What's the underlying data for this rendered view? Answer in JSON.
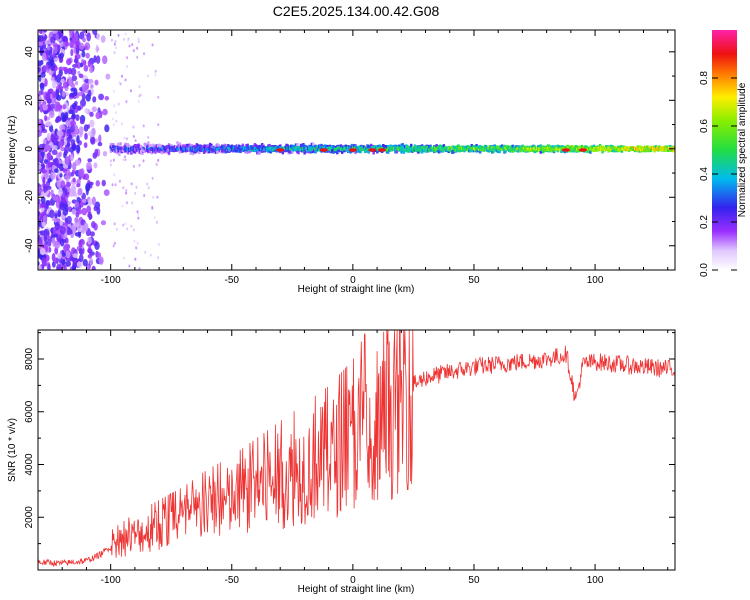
{
  "title": "C2E5.2025.134.00.42.G08",
  "chart_data": [
    {
      "type": "heatmap",
      "xlabel": "Height of straight line (km)",
      "ylabel": "Frequency (Hz)",
      "xlim": [
        -130,
        133
      ],
      "ylim": [
        -50,
        49
      ],
      "xticks": [
        -100,
        -50,
        0,
        50,
        100
      ],
      "xtick_labels": [
        "-100",
        "-50",
        "0",
        "50",
        "100"
      ],
      "yticks": [
        -40,
        -20,
        0,
        20,
        40
      ],
      "ytick_labels": [
        "-40",
        "-20",
        "0",
        "20",
        "40"
      ],
      "colorbar": {
        "label": "Normalized spectral amplitude",
        "range": [
          0,
          1
        ],
        "ticks": [
          0,
          0.2,
          0.4,
          0.6,
          0.8
        ],
        "tick_labels": [
          "0.0",
          "0.2",
          "0.4",
          "0.6",
          "0.8"
        ],
        "colormap": "white-violet-blue-cyan-green-yellow-red-magenta"
      },
      "description_points": [
        {
          "x_range": [
            -130,
            -100
          ],
          "note": "broadband noise across all frequencies, amplitude ~0.1-0.2"
        },
        {
          "x_range": [
            -100,
            133
          ],
          "center_freq_hz": 0,
          "note": "narrow tone near 0 Hz, amplitude rising from ~0.3 to ~1.0"
        }
      ]
    },
    {
      "type": "line",
      "xlabel": "Height of straight line (km)",
      "ylabel": "SNR (10 * v/v)",
      "xlim": [
        -130,
        133
      ],
      "ylim": [
        0,
        9100
      ],
      "xticks": [
        -100,
        -50,
        0,
        50,
        100
      ],
      "xtick_labels": [
        "-100",
        "-50",
        "0",
        "50",
        "100"
      ],
      "yticks": [
        2000,
        4000,
        6000,
        8000
      ],
      "ytick_labels": [
        "2000",
        "4000",
        "6000",
        "8000"
      ],
      "color": "#ee3333",
      "series": [
        {
          "x": [
            -130,
            -120,
            -110,
            -104,
            -100,
            -90,
            -80,
            -70,
            -60,
            -50,
            -40,
            -30,
            -20,
            -10,
            -5,
            0,
            5,
            8,
            10,
            15,
            20,
            25,
            30,
            40,
            50,
            60,
            70,
            80,
            85,
            88,
            90,
            92,
            95,
            100,
            110,
            120,
            133
          ],
          "values": [
            300,
            250,
            350,
            600,
            900,
            1300,
            1600,
            1900,
            2300,
            2600,
            3000,
            3400,
            3800,
            4200,
            4500,
            4800,
            5400,
            3200,
            5000,
            5800,
            6400,
            7000,
            7300,
            7500,
            7700,
            7800,
            7900,
            8000,
            8100,
            8200,
            7400,
            6400,
            7800,
            7900,
            7800,
            7700,
            7600
          ]
        }
      ]
    }
  ]
}
